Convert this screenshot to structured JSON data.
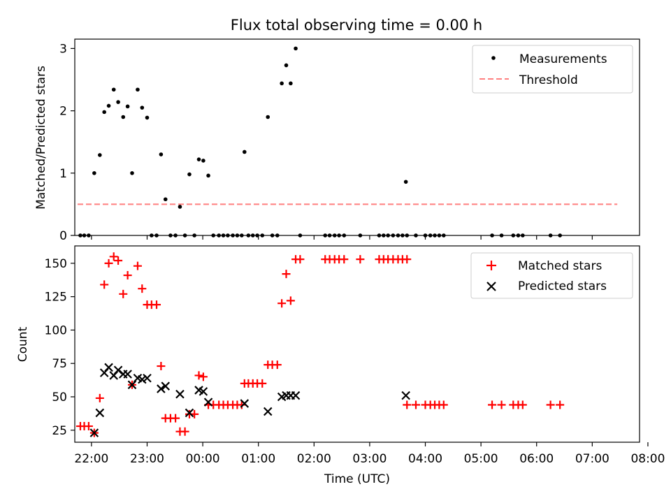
{
  "figure_title": "Flux total observing time = 0.00 h",
  "chart_data": [
    {
      "type": "scatter",
      "title": "Flux total observing time = 0.00 h",
      "xlabel": "",
      "ylabel": "Matched/Predicted stars",
      "xlim": [
        -0.05,
        10.1
      ],
      "ylim": [
        0,
        3.15
      ],
      "yticks": [
        0,
        1,
        2,
        3
      ],
      "grid": false,
      "legend_position": "top-right",
      "series": [
        {
          "name": "Measurements",
          "marker": "dot",
          "color": "#000000",
          "points": [
            [
              0.05,
              0
            ],
            [
              0.12,
              0
            ],
            [
              0.2,
              0
            ],
            [
              0.3,
              1.0
            ],
            [
              0.4,
              1.29
            ],
            [
              0.48,
              1.98
            ],
            [
              0.56,
              2.08
            ],
            [
              0.65,
              2.34
            ],
            [
              0.73,
              2.14
            ],
            [
              0.82,
              1.9
            ],
            [
              0.9,
              2.07
            ],
            [
              0.98,
              1.0
            ],
            [
              1.08,
              2.34
            ],
            [
              1.16,
              2.05
            ],
            [
              1.25,
              1.89
            ],
            [
              1.33,
              0
            ],
            [
              1.42,
              0
            ],
            [
              1.5,
              1.3
            ],
            [
              1.58,
              0.58
            ],
            [
              1.67,
              0
            ],
            [
              1.76,
              0
            ],
            [
              1.84,
              0.46
            ],
            [
              1.93,
              0
            ],
            [
              2.01,
              0.98
            ],
            [
              2.1,
              0
            ],
            [
              2.18,
              1.22
            ],
            [
              2.26,
              1.2
            ],
            [
              2.35,
              0.96
            ],
            [
              2.44,
              0
            ],
            [
              2.54,
              0
            ],
            [
              2.62,
              0
            ],
            [
              2.7,
              0
            ],
            [
              2.79,
              0
            ],
            [
              2.87,
              0
            ],
            [
              2.95,
              0
            ],
            [
              3.0,
              1.34
            ],
            [
              3.07,
              0
            ],
            [
              3.15,
              0
            ],
            [
              3.23,
              0
            ],
            [
              3.32,
              0
            ],
            [
              3.42,
              1.9
            ],
            [
              3.5,
              0
            ],
            [
              3.59,
              0
            ],
            [
              3.67,
              2.44
            ],
            [
              3.75,
              2.73
            ],
            [
              3.83,
              2.44
            ],
            [
              3.92,
              3.0
            ],
            [
              4.0,
              0
            ],
            [
              4.45,
              0
            ],
            [
              4.53,
              0
            ],
            [
              4.62,
              0
            ],
            [
              4.7,
              0
            ],
            [
              4.79,
              0
            ],
            [
              5.08,
              0
            ],
            [
              5.42,
              0
            ],
            [
              5.5,
              0
            ],
            [
              5.58,
              0
            ],
            [
              5.67,
              0
            ],
            [
              5.76,
              0
            ],
            [
              5.84,
              0
            ],
            [
              5.92,
              0
            ],
            [
              5.9,
              0.86
            ],
            [
              6.08,
              0
            ],
            [
              6.25,
              0
            ],
            [
              6.34,
              0
            ],
            [
              6.42,
              0
            ],
            [
              6.5,
              0
            ],
            [
              6.58,
              0
            ],
            [
              7.45,
              0
            ],
            [
              7.62,
              0
            ],
            [
              7.83,
              0
            ],
            [
              7.92,
              0
            ],
            [
              8.0,
              0
            ],
            [
              8.5,
              0
            ],
            [
              8.67,
              0
            ]
          ]
        },
        {
          "name": "Threshold",
          "style": "dashed",
          "color": "#ff7f7f",
          "points": [
            [
              0.0,
              0.5
            ],
            [
              9.7,
              0.5
            ]
          ]
        }
      ]
    },
    {
      "type": "scatter",
      "title": "",
      "xlabel": "Time (UTC)",
      "ylabel": "Count",
      "xlim": [
        -0.05,
        10.1
      ],
      "ylim": [
        16,
        163
      ],
      "yticks": [
        25,
        50,
        75,
        100,
        125,
        150
      ],
      "xtick_positions": [
        0.25,
        1.25,
        2.25,
        3.25,
        4.25,
        5.25,
        6.25,
        7.25,
        8.25,
        9.25,
        10.25
      ],
      "xtick_labels": [
        "22:00",
        "23:00",
        "00:00",
        "01:00",
        "02:00",
        "03:00",
        "04:00",
        "05:00",
        "06:00",
        "07:00",
        "08:00"
      ],
      "grid": false,
      "legend_position": "top-right",
      "series": [
        {
          "name": "Matched stars",
          "marker": "plus",
          "color": "#ff0000",
          "points": [
            [
              0.05,
              28
            ],
            [
              0.12,
              28
            ],
            [
              0.2,
              28
            ],
            [
              0.3,
              23
            ],
            [
              0.4,
              49
            ],
            [
              0.48,
              134
            ],
            [
              0.56,
              150
            ],
            [
              0.65,
              155
            ],
            [
              0.73,
              152
            ],
            [
              0.82,
              127
            ],
            [
              0.9,
              141
            ],
            [
              0.98,
              59
            ],
            [
              1.08,
              148
            ],
            [
              1.16,
              131
            ],
            [
              1.25,
              119
            ],
            [
              1.33,
              119
            ],
            [
              1.42,
              119
            ],
            [
              1.5,
              73
            ],
            [
              1.58,
              34
            ],
            [
              1.67,
              34
            ],
            [
              1.76,
              34
            ],
            [
              1.84,
              24
            ],
            [
              1.93,
              24
            ],
            [
              2.01,
              37
            ],
            [
              2.1,
              37
            ],
            [
              2.18,
              66
            ],
            [
              2.26,
              65
            ],
            [
              2.35,
              44
            ],
            [
              2.44,
              44
            ],
            [
              2.54,
              44
            ],
            [
              2.62,
              44
            ],
            [
              2.7,
              44
            ],
            [
              2.79,
              44
            ],
            [
              2.87,
              44
            ],
            [
              2.95,
              44
            ],
            [
              3.0,
              60
            ],
            [
              3.07,
              60
            ],
            [
              3.15,
              60
            ],
            [
              3.23,
              60
            ],
            [
              3.32,
              60
            ],
            [
              3.42,
              74
            ],
            [
              3.5,
              74
            ],
            [
              3.59,
              74
            ],
            [
              3.67,
              120
            ],
            [
              3.75,
              142
            ],
            [
              3.83,
              122
            ],
            [
              3.92,
              153
            ],
            [
              4.0,
              153
            ],
            [
              4.45,
              153
            ],
            [
              4.53,
              153
            ],
            [
              4.62,
              153
            ],
            [
              4.7,
              153
            ],
            [
              4.79,
              153
            ],
            [
              5.08,
              153
            ],
            [
              5.42,
              153
            ],
            [
              5.5,
              153
            ],
            [
              5.58,
              153
            ],
            [
              5.67,
              153
            ],
            [
              5.76,
              153
            ],
            [
              5.84,
              153
            ],
            [
              5.92,
              153
            ],
            [
              5.92,
              44
            ],
            [
              6.08,
              44
            ],
            [
              6.25,
              44
            ],
            [
              6.34,
              44
            ],
            [
              6.42,
              44
            ],
            [
              6.5,
              44
            ],
            [
              6.58,
              44
            ],
            [
              7.45,
              44
            ],
            [
              7.62,
              44
            ],
            [
              7.83,
              44
            ],
            [
              7.92,
              44
            ],
            [
              8.0,
              44
            ],
            [
              8.5,
              44
            ],
            [
              8.67,
              44
            ]
          ]
        },
        {
          "name": "Predicted stars",
          "marker": "x",
          "color": "#000000",
          "points": [
            [
              0.3,
              23
            ],
            [
              0.4,
              38
            ],
            [
              0.48,
              68
            ],
            [
              0.56,
              72
            ],
            [
              0.65,
              66
            ],
            [
              0.73,
              70
            ],
            [
              0.82,
              67
            ],
            [
              0.9,
              67
            ],
            [
              0.98,
              59
            ],
            [
              1.08,
              64
            ],
            [
              1.16,
              63
            ],
            [
              1.25,
              64
            ],
            [
              1.5,
              56
            ],
            [
              1.58,
              58
            ],
            [
              1.84,
              52
            ],
            [
              2.01,
              38
            ],
            [
              2.18,
              55
            ],
            [
              2.26,
              54
            ],
            [
              2.35,
              46
            ],
            [
              3.0,
              45
            ],
            [
              3.42,
              39
            ],
            [
              3.67,
              50
            ],
            [
              3.75,
              51
            ],
            [
              3.83,
              51
            ],
            [
              3.92,
              51
            ],
            [
              5.9,
              51
            ]
          ]
        }
      ]
    }
  ]
}
